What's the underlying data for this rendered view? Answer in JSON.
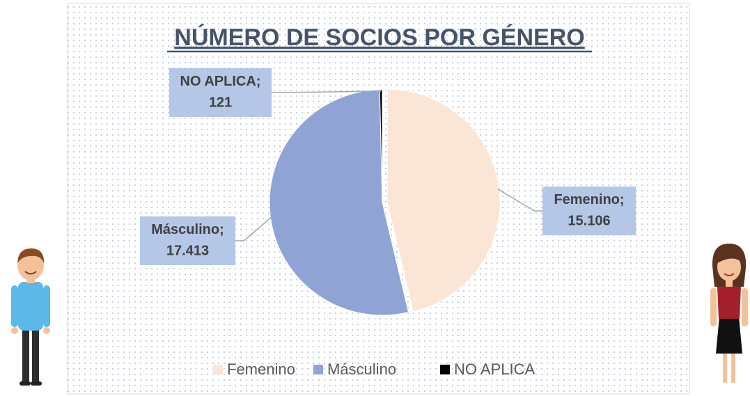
{
  "chart_data": {
    "type": "pie",
    "title": "NÚMERO DE SOCIOS POR GÉNERO",
    "categories": [
      "Femenino",
      "Másculino",
      "NO APLICA"
    ],
    "values": [
      15106,
      17413,
      121
    ],
    "value_labels": [
      "15.106",
      "17.413",
      "121"
    ],
    "label_separator": ";",
    "colors": [
      "#fbe5d6",
      "#8fa4d4",
      "#000000"
    ],
    "legend": "bottom"
  }
}
